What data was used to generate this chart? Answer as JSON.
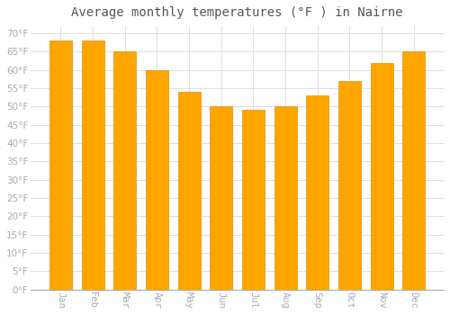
{
  "title": "Average monthly temperatures (°F ) in Nairne",
  "months": [
    "Jan",
    "Feb",
    "Mar",
    "Apr",
    "May",
    "Jun",
    "Jul",
    "Aug",
    "Sep",
    "Oct",
    "Nov",
    "Dec"
  ],
  "values": [
    68,
    68,
    65,
    60,
    54,
    50,
    49,
    50,
    53,
    57,
    62,
    65
  ],
  "bar_color": "#FFA500",
  "bar_edge_color": "#E89000",
  "background_color": "#FFFFFF",
  "grid_color": "#DDDDDD",
  "ylim": [
    0,
    72
  ],
  "yticks": [
    0,
    5,
    10,
    15,
    20,
    25,
    30,
    35,
    40,
    45,
    50,
    55,
    60,
    65,
    70
  ],
  "title_fontsize": 10,
  "tick_fontsize": 7.5,
  "tick_color": "#AAAAAA",
  "xlabel_rotation": 270
}
